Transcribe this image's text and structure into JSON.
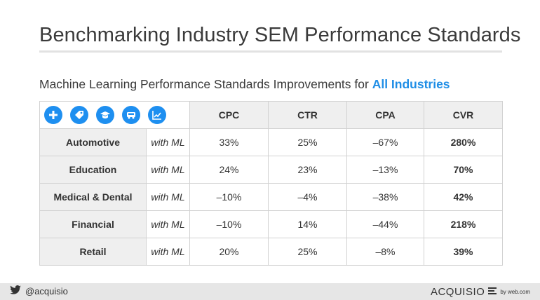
{
  "title": "Benchmarking Industry SEM Performance Standards",
  "subtitle": {
    "prefix": "Machine Learning Performance Standards Improvements for ",
    "highlight": "All Industries"
  },
  "colors": {
    "accent": "#1f8ee6",
    "icon_bg": "#1e8ff0"
  },
  "icons": [
    "medical-icon",
    "tag-icon",
    "graduation-cap-icon",
    "car-icon",
    "chart-icon"
  ],
  "table": {
    "columns": [
      "CPC",
      "CTR",
      "CPA",
      "CVR"
    ],
    "rows": [
      {
        "industry": "Automotive",
        "note": "with ML",
        "cpc": "33%",
        "ctr": "25%",
        "cpa": "–67%",
        "cvr": "280%"
      },
      {
        "industry": "Education",
        "note": "with ML",
        "cpc": "24%",
        "ctr": "23%",
        "cpa": "–13%",
        "cvr": "70%"
      },
      {
        "industry": "Medical & Dental",
        "note": "with ML",
        "cpc": "–10%",
        "ctr": "–4%",
        "cpa": "–38%",
        "cvr": "42%"
      },
      {
        "industry": "Financial",
        "note": "with ML",
        "cpc": "–10%",
        "ctr": "14%",
        "cpa": "–44%",
        "cvr": "218%"
      },
      {
        "industry": "Retail",
        "note": "with ML",
        "cpc": "20%",
        "ctr": "25%",
        "cpa": "–8%",
        "cvr": "39%"
      }
    ]
  },
  "footer": {
    "handle": "@acquisio",
    "brand": "ACQUISIO",
    "by": "by web.com"
  }
}
